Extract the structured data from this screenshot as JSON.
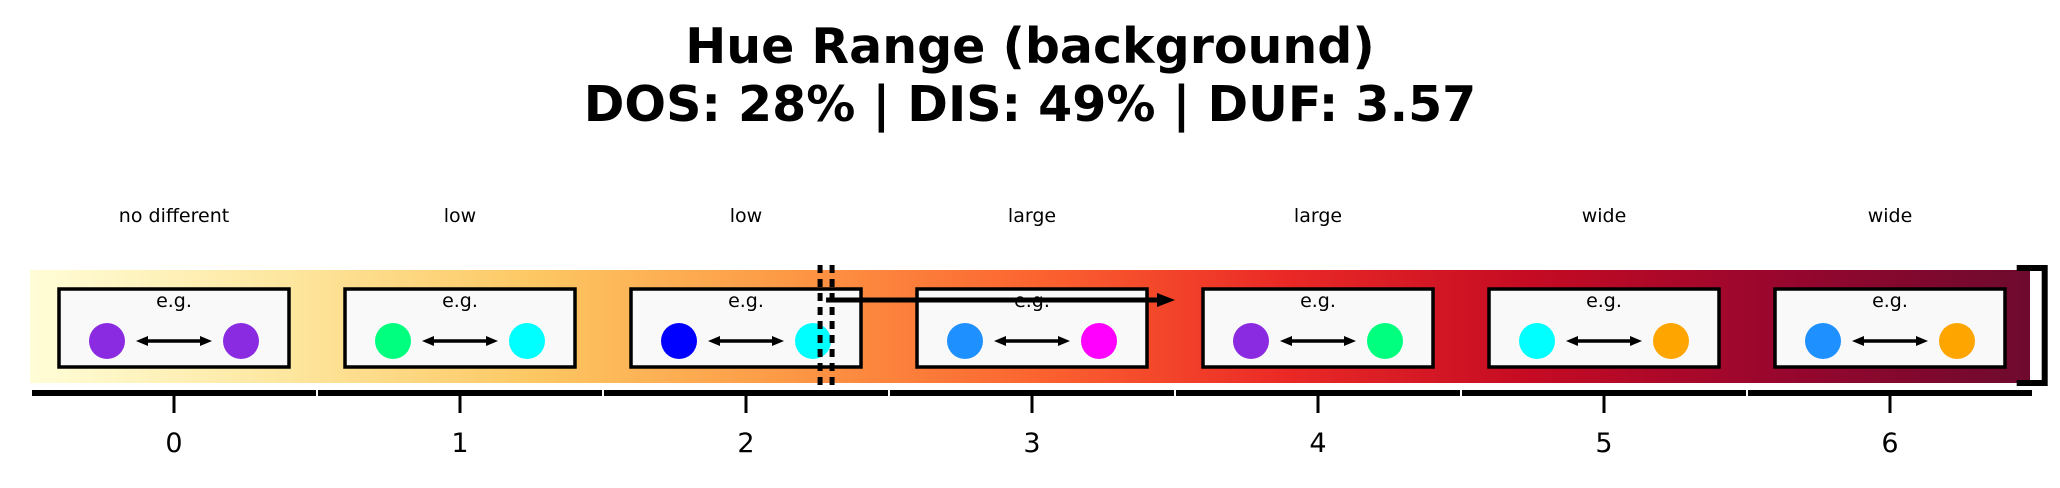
{
  "title": {
    "line1": "Hue Range (background)",
    "line2": "DOS: 28% | DIS: 49% | DUF: 3.57"
  },
  "gradient_colors": [
    "#fffdd7",
    "#fde7a0",
    "#fdc864",
    "#fd9a46",
    "#fc6530",
    "#eb2a26",
    "#c50b23",
    "#98062e",
    "#6e0a2e"
  ],
  "example_label": "e.g.",
  "levels": [
    {
      "tick": "0",
      "category": "no different",
      "left_color": "#8a2be2",
      "right_color": "#8a2be2"
    },
    {
      "tick": "1",
      "category": "low",
      "left_color": "#00ff7f",
      "right_color": "#00ffff"
    },
    {
      "tick": "2",
      "category": "low",
      "left_color": "#0000ff",
      "right_color": "#00ffff"
    },
    {
      "tick": "3",
      "category": "large",
      "left_color": "#1e90ff",
      "right_color": "#ff00ff"
    },
    {
      "tick": "4",
      "category": "large",
      "left_color": "#8a2be2",
      "right_color": "#00ff7f"
    },
    {
      "tick": "5",
      "category": "wide",
      "left_color": "#00ffff",
      "right_color": "#ffa500"
    },
    {
      "tick": "6",
      "category": "wide",
      "left_color": "#1e90ff",
      "right_color": "#ffa500"
    }
  ],
  "markers": {
    "dotted_position": 2.28,
    "arrow_from": 2.28,
    "arrow_to": 3.5,
    "bracket_position": 6.45
  }
}
